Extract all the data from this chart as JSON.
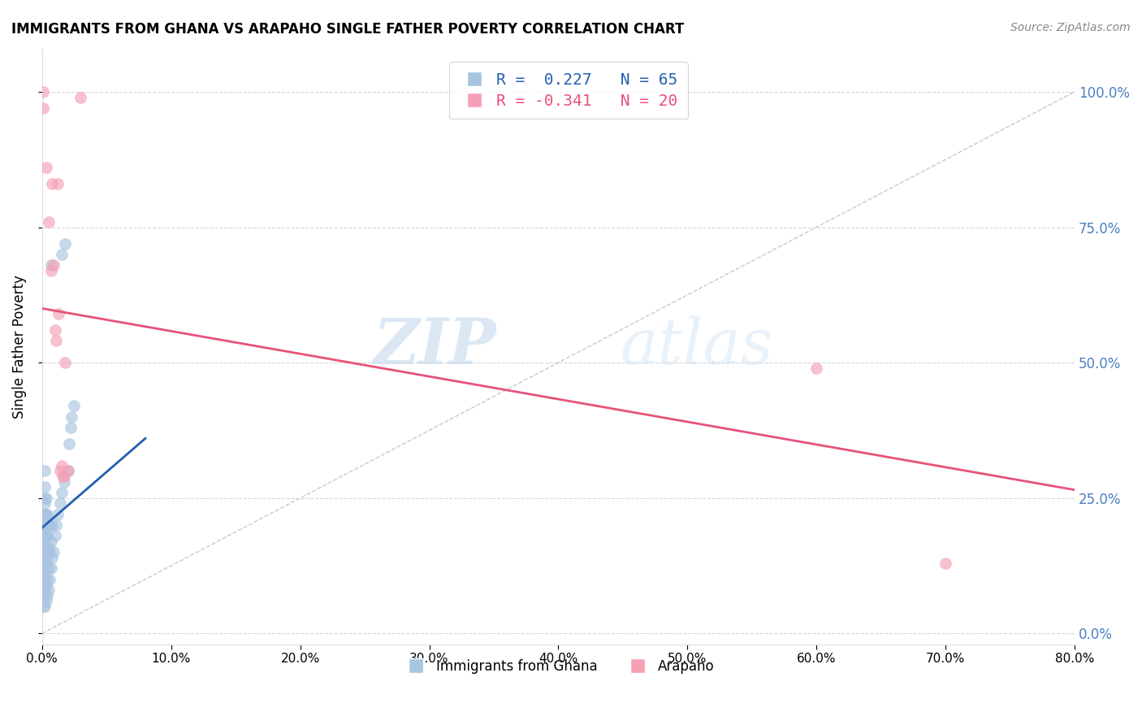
{
  "title": "IMMIGRANTS FROM GHANA VS ARAPAHO SINGLE FATHER POVERTY CORRELATION CHART",
  "source": "Source: ZipAtlas.com",
  "ylabel": "Single Father Poverty",
  "xlim": [
    0.0,
    0.8
  ],
  "ylim": [
    -0.02,
    1.08
  ],
  "yticks": [
    0.0,
    0.25,
    0.5,
    0.75,
    1.0
  ],
  "xticks": [
    0.0,
    0.1,
    0.2,
    0.3,
    0.4,
    0.5,
    0.6,
    0.7,
    0.8
  ],
  "ghana_color": "#a8c4e0",
  "arapaho_color": "#f4a0b5",
  "ghana_line_color": "#2060b0",
  "arapaho_line_color": "#e8527a",
  "watermark_zip": "ZIP",
  "watermark_atlas": "atlas",
  "ghana_R": 0.227,
  "ghana_N": 65,
  "arapaho_R": -0.341,
  "arapaho_N": 20,
  "ghana_line_x0": 0.0,
  "ghana_line_y0": 0.195,
  "ghana_line_x1": 0.08,
  "ghana_line_y1": 0.36,
  "arapaho_line_x0": 0.0,
  "arapaho_line_y0": 0.6,
  "arapaho_line_x1": 0.8,
  "arapaho_line_y1": 0.265,
  "ghana_x": [
    0.001,
    0.001,
    0.001,
    0.001,
    0.001,
    0.001,
    0.001,
    0.001,
    0.001,
    0.001,
    0.001,
    0.001,
    0.001,
    0.001,
    0.001,
    0.002,
    0.002,
    0.002,
    0.002,
    0.002,
    0.002,
    0.002,
    0.002,
    0.002,
    0.002,
    0.002,
    0.002,
    0.003,
    0.003,
    0.003,
    0.003,
    0.003,
    0.003,
    0.003,
    0.004,
    0.004,
    0.004,
    0.004,
    0.004,
    0.005,
    0.005,
    0.005,
    0.005,
    0.006,
    0.006,
    0.006,
    0.007,
    0.007,
    0.008,
    0.008,
    0.009,
    0.01,
    0.011,
    0.012,
    0.014,
    0.015,
    0.017,
    0.02,
    0.021,
    0.022,
    0.023,
    0.025,
    0.007,
    0.015,
    0.018
  ],
  "ghana_y": [
    0.05,
    0.07,
    0.08,
    0.1,
    0.11,
    0.12,
    0.13,
    0.14,
    0.15,
    0.16,
    0.17,
    0.18,
    0.19,
    0.2,
    0.22,
    0.05,
    0.08,
    0.1,
    0.13,
    0.16,
    0.18,
    0.2,
    0.22,
    0.24,
    0.25,
    0.27,
    0.3,
    0.06,
    0.09,
    0.12,
    0.15,
    0.18,
    0.22,
    0.25,
    0.07,
    0.1,
    0.14,
    0.18,
    0.22,
    0.08,
    0.12,
    0.16,
    0.2,
    0.1,
    0.15,
    0.2,
    0.12,
    0.17,
    0.14,
    0.2,
    0.15,
    0.18,
    0.2,
    0.22,
    0.24,
    0.26,
    0.28,
    0.3,
    0.35,
    0.38,
    0.4,
    0.42,
    0.68,
    0.7,
    0.72
  ],
  "arapaho_x": [
    0.001,
    0.001,
    0.003,
    0.005,
    0.007,
    0.008,
    0.009,
    0.01,
    0.011,
    0.012,
    0.013,
    0.014,
    0.015,
    0.016,
    0.017,
    0.018,
    0.02,
    0.03,
    0.6,
    0.7
  ],
  "arapaho_y": [
    0.97,
    1.0,
    0.86,
    0.76,
    0.67,
    0.83,
    0.68,
    0.56,
    0.54,
    0.83,
    0.59,
    0.3,
    0.31,
    0.29,
    0.29,
    0.5,
    0.3,
    0.99,
    0.49,
    0.13
  ]
}
